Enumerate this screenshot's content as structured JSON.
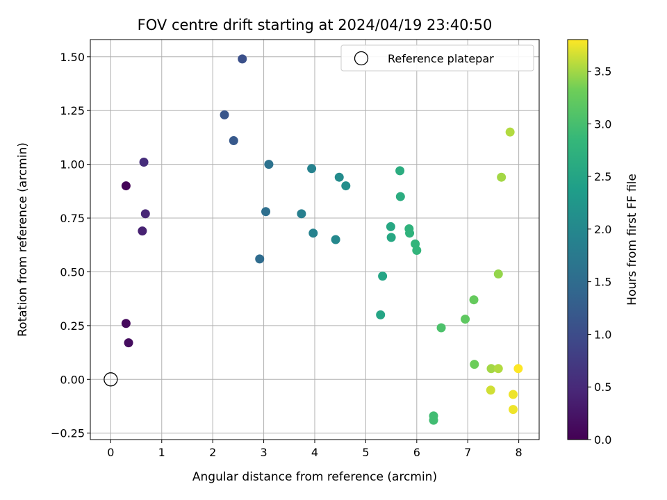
{
  "chart_data": {
    "type": "scatter",
    "title": "FOV centre drift starting at 2024/04/19 23:40:50",
    "xlabel": "Angular distance from reference (arcmin)",
    "ylabel": "Rotation from reference (arcmin)",
    "xlim": [
      -0.4,
      8.4
    ],
    "ylim": [
      -0.28,
      1.58
    ],
    "xticks": [
      0,
      1,
      2,
      3,
      4,
      5,
      6,
      7,
      8
    ],
    "xtick_labels": [
      "0",
      "1",
      "2",
      "3",
      "4",
      "5",
      "6",
      "7",
      "8"
    ],
    "yticks": [
      -0.25,
      0.0,
      0.25,
      0.5,
      0.75,
      1.0,
      1.25,
      1.5
    ],
    "ytick_labels": [
      "−0.25",
      "0.00",
      "0.25",
      "0.50",
      "0.75",
      "1.00",
      "1.25",
      "1.50"
    ],
    "grid": true,
    "legend": {
      "location": "top-right",
      "entries": [
        "Reference platepar"
      ]
    },
    "colorbar": {
      "label": "Hours from first FF file",
      "colormap": "viridis",
      "range": [
        0.0,
        3.8
      ],
      "ticks": [
        0.0,
        0.5,
        1.0,
        1.5,
        2.0,
        2.5,
        3.0,
        3.5
      ],
      "tick_labels": [
        "0.0",
        "0.5",
        "1.0",
        "1.5",
        "2.0",
        "2.5",
        "3.0",
        "3.5"
      ]
    },
    "reference_point": {
      "name": "Reference platepar",
      "x": 0.0,
      "y": 0.0
    },
    "points": [
      {
        "x": 0.3,
        "y": 0.9,
        "hours": 0.05
      },
      {
        "x": 0.3,
        "y": 0.26,
        "hours": 0.1
      },
      {
        "x": 0.35,
        "y": 0.17,
        "hours": 0.15
      },
      {
        "x": 0.62,
        "y": 0.69,
        "hours": 0.4
      },
      {
        "x": 0.68,
        "y": 0.77,
        "hours": 0.45
      },
      {
        "x": 0.65,
        "y": 1.01,
        "hours": 0.55
      },
      {
        "x": 2.58,
        "y": 1.49,
        "hours": 1.05
      },
      {
        "x": 2.23,
        "y": 1.23,
        "hours": 1.15
      },
      {
        "x": 2.41,
        "y": 1.11,
        "hours": 1.2
      },
      {
        "x": 2.92,
        "y": 0.56,
        "hours": 1.5
      },
      {
        "x": 3.04,
        "y": 0.78,
        "hours": 1.55
      },
      {
        "x": 3.1,
        "y": 1.0,
        "hours": 1.6
      },
      {
        "x": 3.74,
        "y": 0.77,
        "hours": 1.85
      },
      {
        "x": 3.94,
        "y": 0.98,
        "hours": 1.9
      },
      {
        "x": 3.97,
        "y": 0.68,
        "hours": 1.9
      },
      {
        "x": 4.41,
        "y": 0.65,
        "hours": 2.0
      },
      {
        "x": 4.48,
        "y": 0.94,
        "hours": 2.05
      },
      {
        "x": 4.61,
        "y": 0.9,
        "hours": 2.1
      },
      {
        "x": 5.29,
        "y": 0.3,
        "hours": 2.5
      },
      {
        "x": 5.33,
        "y": 0.48,
        "hours": 2.5
      },
      {
        "x": 5.49,
        "y": 0.71,
        "hours": 2.55
      },
      {
        "x": 5.5,
        "y": 0.66,
        "hours": 2.55
      },
      {
        "x": 5.67,
        "y": 0.97,
        "hours": 2.65
      },
      {
        "x": 5.68,
        "y": 0.85,
        "hours": 2.65
      },
      {
        "x": 5.85,
        "y": 0.7,
        "hours": 2.75
      },
      {
        "x": 5.86,
        "y": 0.68,
        "hours": 2.75
      },
      {
        "x": 5.97,
        "y": 0.63,
        "hours": 2.8
      },
      {
        "x": 6.0,
        "y": 0.6,
        "hours": 2.8
      },
      {
        "x": 6.33,
        "y": -0.17,
        "hours": 2.95
      },
      {
        "x": 6.33,
        "y": -0.19,
        "hours": 2.95
      },
      {
        "x": 6.48,
        "y": 0.24,
        "hours": 3.05
      },
      {
        "x": 6.95,
        "y": 0.28,
        "hours": 3.2
      },
      {
        "x": 7.13,
        "y": 0.07,
        "hours": 3.3
      },
      {
        "x": 7.12,
        "y": 0.37,
        "hours": 3.25
      },
      {
        "x": 7.46,
        "y": 0.05,
        "hours": 3.5
      },
      {
        "x": 7.45,
        "y": -0.05,
        "hours": 3.65
      },
      {
        "x": 7.6,
        "y": 0.05,
        "hours": 3.55
      },
      {
        "x": 7.6,
        "y": 0.49,
        "hours": 3.45
      },
      {
        "x": 7.66,
        "y": 0.94,
        "hours": 3.5
      },
      {
        "x": 7.83,
        "y": 1.15,
        "hours": 3.55
      },
      {
        "x": 7.89,
        "y": -0.07,
        "hours": 3.75
      },
      {
        "x": 7.89,
        "y": -0.14,
        "hours": 3.75
      },
      {
        "x": 7.99,
        "y": 0.05,
        "hours": 3.8
      }
    ]
  }
}
